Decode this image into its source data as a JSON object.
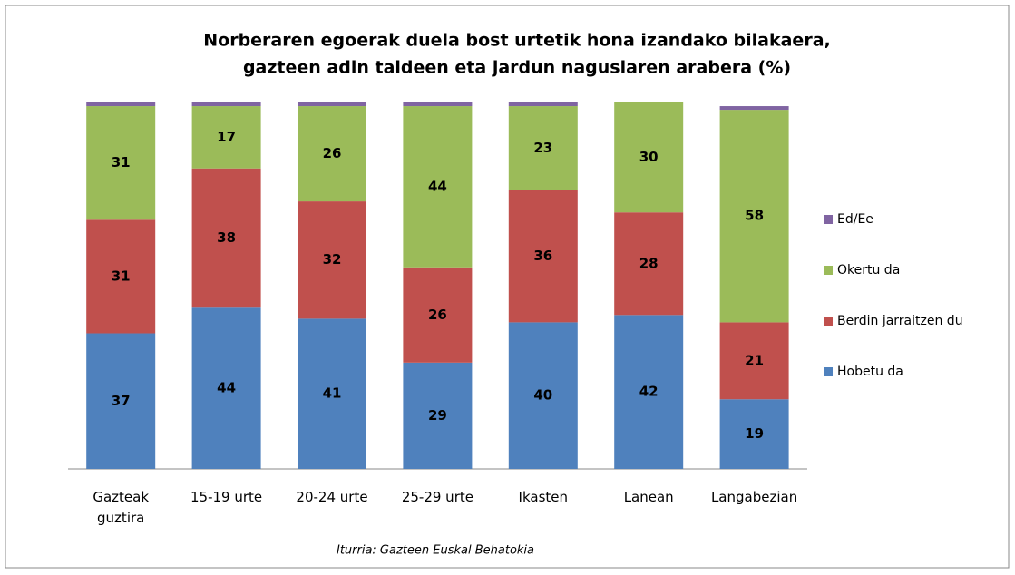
{
  "chart_data": {
    "type": "stacked_bar",
    "title": [
      "Norberaren egoerak duela bost urtetik hona izandako bilakaera,",
      "gazteen adin taldeen eta jardun nagusiaren arabera  (%)"
    ],
    "source": "Iturria: Gazteen Euskal Behatokia",
    "categories": [
      "Gazteak guztira",
      "15-19 urte",
      "20-24 urte",
      "25-29 urte",
      "Ikasten",
      "Lanean",
      "Langabezian"
    ],
    "series": [
      {
        "name": "Hobetu da",
        "color": "#4f81bd",
        "values": [
          37,
          44,
          41,
          29,
          40,
          42,
          19
        ]
      },
      {
        "name": "Berdin jarraitzen du",
        "color": "#c0504d",
        "values": [
          31,
          38,
          32,
          26,
          36,
          28,
          21
        ]
      },
      {
        "name": "Okertu da",
        "color": "#9bbb59",
        "values": [
          31,
          17,
          26,
          44,
          23,
          30,
          58
        ]
      },
      {
        "name": "Ed/Ee",
        "color": "#8064a2",
        "values": [
          1,
          1,
          1,
          1,
          1,
          0,
          1
        ]
      }
    ],
    "ylim": [
      0,
      100
    ],
    "legend": "right"
  }
}
